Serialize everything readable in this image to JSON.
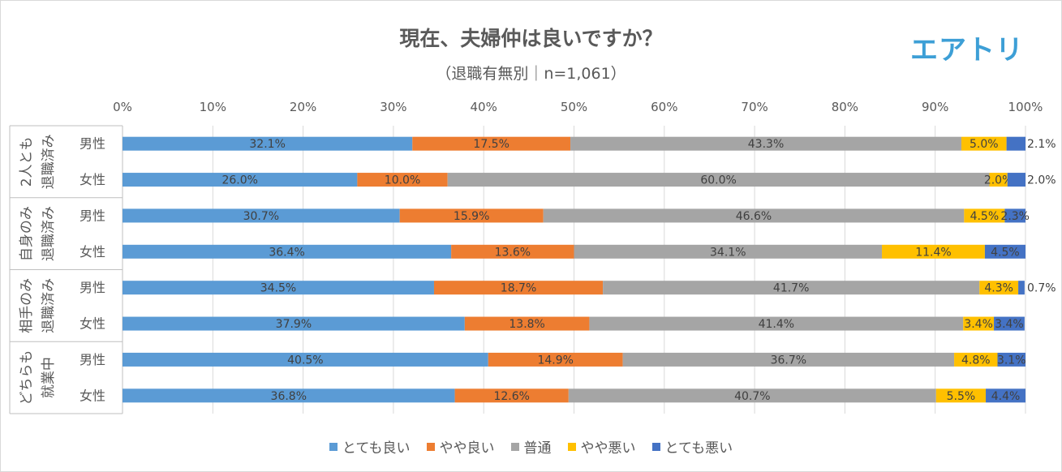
{
  "title": "現在、夫婦仲は良いですか？",
  "subtitle": "（退職有無別｜n=1,061）",
  "logo_text": "エアトリ",
  "chart_data": {
    "type": "bar",
    "orientation": "horizontal",
    "stacked": true,
    "percent": true,
    "xlim": [
      0,
      100
    ],
    "x_ticks": [
      "0%",
      "10%",
      "20%",
      "30%",
      "40%",
      "50%",
      "60%",
      "70%",
      "80%",
      "90%",
      "100%"
    ],
    "grid": true,
    "legend_position": "bottom",
    "groups": [
      {
        "label_line1": "2人とも",
        "label_line2": "退職済み"
      },
      {
        "label_line1": "自身のみ",
        "label_line2": "退職済み"
      },
      {
        "label_line1": "相手のみ",
        "label_line2": "退職済み"
      },
      {
        "label_line1": "どちらも",
        "label_line2": "就業中"
      }
    ],
    "categories": [
      "男性",
      "女性",
      "男性",
      "女性",
      "男性",
      "女性",
      "男性",
      "女性"
    ],
    "series": [
      {
        "name": "とても良い",
        "color": "#5b9bd5",
        "values": [
          32.1,
          26.0,
          30.7,
          36.4,
          34.5,
          37.9,
          40.5,
          36.8
        ]
      },
      {
        "name": "やや良い",
        "color": "#ed7d31",
        "values": [
          17.5,
          10.0,
          15.9,
          13.6,
          18.7,
          13.8,
          14.9,
          12.6
        ]
      },
      {
        "name": "普通",
        "color": "#a5a5a5",
        "values": [
          43.3,
          60.0,
          46.6,
          34.1,
          41.7,
          41.4,
          36.7,
          40.7
        ]
      },
      {
        "name": "やや悪い",
        "color": "#ffc000",
        "values": [
          5.0,
          2.0,
          4.5,
          11.4,
          4.3,
          3.4,
          4.8,
          5.5
        ]
      },
      {
        "name": "とても悪い",
        "color": "#4472c4",
        "values": [
          2.1,
          2.0,
          2.3,
          4.5,
          0.7,
          3.4,
          3.1,
          4.4
        ]
      }
    ]
  }
}
